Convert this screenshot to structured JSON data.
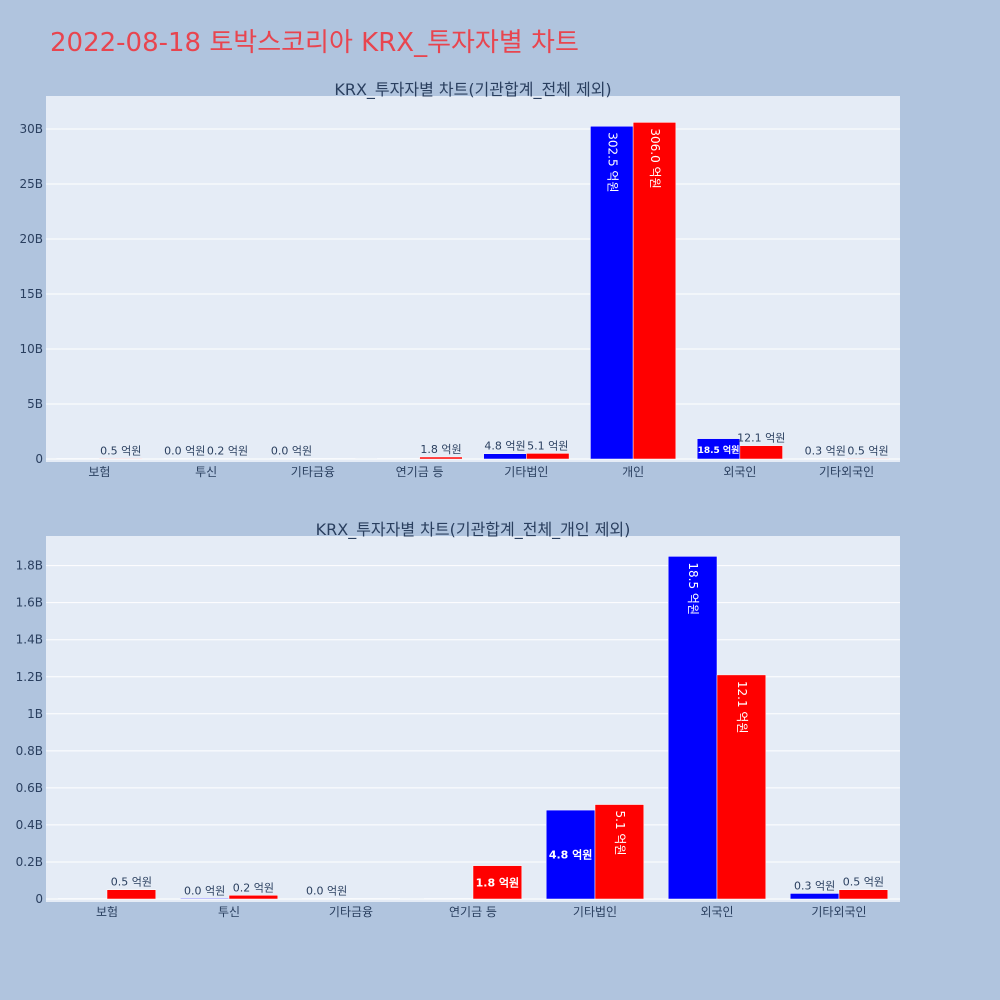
{
  "page_title": "2022-08-18 토박스코리아 KRX_투자자별 차트",
  "colors": {
    "buy": "#0000ff",
    "sell": "#ff0000",
    "title": "#e8454f"
  },
  "chart_data": [
    {
      "type": "bar",
      "title": "KRX_투자자별 차트(기관합계_전체 제외)",
      "categories": [
        "보험",
        "투신",
        "기타금융",
        "연기금 등",
        "기타법인",
        "개인",
        "외국인",
        "기타외국인"
      ],
      "series": [
        {
          "color": "#0000ff",
          "values": [
            0,
            0.004,
            0.001,
            0,
            0.48,
            30.25,
            1.85,
            0.03
          ],
          "labels": [
            "",
            "0.0 억원",
            "0.0 억원",
            "",
            "4.8 억원",
            "302.5 억원",
            "18.5 억원",
            "0.3 억원"
          ]
        },
        {
          "color": "#ff0000",
          "values": [
            0.05,
            0.02,
            0,
            0.18,
            0.51,
            30.6,
            1.21,
            0.05
          ],
          "labels": [
            "0.5 억원",
            "0.2 억원",
            "",
            "1.8 억원",
            "5.1 억원",
            "306.0 억원",
            "12.1 억원",
            "0.5 억원"
          ]
        }
      ],
      "ylim": [
        0,
        33
      ],
      "yticks": [
        0,
        5,
        10,
        15,
        20,
        25,
        30
      ],
      "ytick_labels": [
        "0",
        "5B",
        "10B",
        "15B",
        "20B",
        "25B",
        "30B"
      ]
    },
    {
      "type": "bar",
      "title": "KRX_투자자별 차트(기관합계_전체_개인 제외)",
      "categories": [
        "보험",
        "투신",
        "기타금융",
        "연기금 등",
        "기타법인",
        "외국인",
        "기타외국인"
      ],
      "series": [
        {
          "color": "#0000ff",
          "values": [
            0,
            0.004,
            0.001,
            0,
            0.48,
            1.85,
            0.03
          ],
          "labels": [
            "",
            "0.0 억원",
            "0.0 억원",
            "",
            "4.8 억원",
            "18.5 억원",
            "0.3 억원"
          ]
        },
        {
          "color": "#ff0000",
          "values": [
            0.05,
            0.02,
            0,
            0.18,
            0.51,
            1.21,
            0.05
          ],
          "labels": [
            "0.5 억원",
            "0.2 억원",
            "",
            "1.8 억원",
            "5.1 억원",
            "12.1 억원",
            "0.5 억원"
          ]
        }
      ],
      "ylim": [
        0,
        1.96
      ],
      "yticks": [
        0,
        0.2,
        0.4,
        0.6,
        0.8,
        1,
        1.2,
        1.4,
        1.6,
        1.8
      ],
      "ytick_labels": [
        "0",
        "0.2B",
        "0.4B",
        "0.6B",
        "0.8B",
        "1B",
        "1.2B",
        "1.4B",
        "1.6B",
        "1.8B"
      ]
    }
  ]
}
